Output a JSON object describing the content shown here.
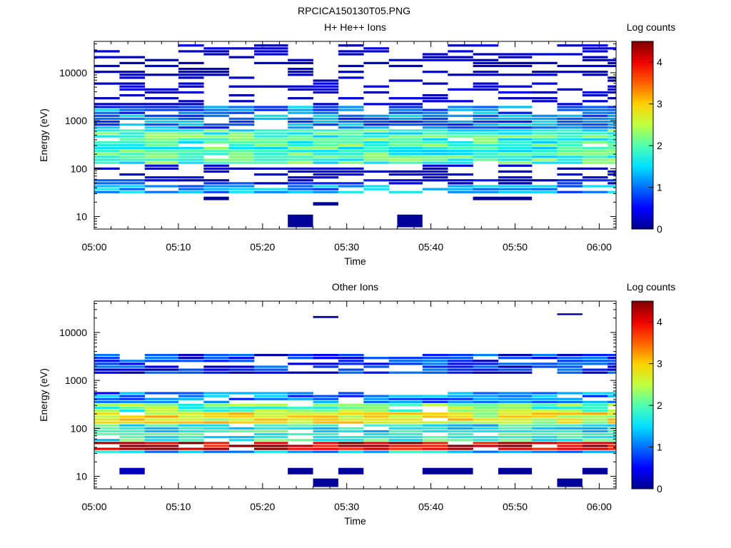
{
  "figure": {
    "title": "RPCICA150130T05.PNG"
  },
  "colormap": [
    "#00008f",
    "#0000ff",
    "#0070ff",
    "#00e0ff",
    "#50ffaf",
    "#c0ff40",
    "#ffd000",
    "#ff6000",
    "#ef0000",
    "#800000"
  ],
  "chart_data": [
    {
      "type": "heatmap",
      "title": "H+ He++ Ions",
      "xlabel": "Time",
      "ylabel": "Energy (eV)",
      "y_scale": "log",
      "xlim": [
        "05:00",
        "06:02"
      ],
      "ylim": [
        5.5,
        45000
      ],
      "x_ticks": [
        "05:00",
        "05:10",
        "05:20",
        "05:30",
        "05:40",
        "05:50",
        "06:00"
      ],
      "y_ticks": [
        {
          "value": 10,
          "label": "10"
        },
        {
          "value": 100,
          "label": "100"
        },
        {
          "value": 1000,
          "label": "1000"
        },
        {
          "value": 10000,
          "label": "10000"
        }
      ],
      "time_bins": [
        "05:00",
        "05:03",
        "05:06",
        "05:10",
        "05:13",
        "05:16",
        "05:19",
        "05:23",
        "05:26",
        "05:29",
        "05:32",
        "05:35",
        "05:39",
        "05:42",
        "05:45",
        "05:48",
        "05:52",
        "05:55",
        "05:58",
        "06:01"
      ],
      "colorbar": {
        "label": "Log counts",
        "ticks": [
          0,
          1,
          2,
          3,
          4
        ],
        "range": [
          0,
          4.5
        ]
      },
      "profile": [
        {
          "e_min": 30,
          "e_max": 48,
          "level": 1.2
        },
        {
          "e_min": 48,
          "e_max": 60,
          "level": 0.6
        },
        {
          "e_min": 60,
          "e_max": 130,
          "level": 0.25
        },
        {
          "e_min": 130,
          "e_max": 650,
          "level": 1.9
        },
        {
          "e_min": 650,
          "e_max": 2000,
          "level": 1.1
        },
        {
          "e_min": 2000,
          "e_max": 40000,
          "level": 0.12
        }
      ],
      "features": [
        {
          "t_start": "05:23",
          "t_end": "05:26",
          "e_min": 6,
          "e_max": 11,
          "level": 0.05
        },
        {
          "t_start": "05:36",
          "t_end": "05:39",
          "e_min": 6,
          "e_max": 11,
          "level": 0.05
        },
        {
          "t_start": "05:26",
          "t_end": "05:29",
          "e_min": 17,
          "e_max": 20,
          "level": 0.05
        },
        {
          "t_start": "05:13",
          "t_end": "05:16",
          "e_min": 22,
          "e_max": 26,
          "level": 0.05
        },
        {
          "t_start": "05:45",
          "t_end": "05:52",
          "e_min": 22,
          "e_max": 26,
          "level": 0.05
        }
      ]
    },
    {
      "type": "heatmap",
      "title": "Other Ions",
      "xlabel": "Time",
      "ylabel": "Energy (eV)",
      "y_scale": "log",
      "xlim": [
        "05:00",
        "06:02"
      ],
      "ylim": [
        5.5,
        45000
      ],
      "x_ticks": [
        "05:00",
        "05:10",
        "05:20",
        "05:30",
        "05:40",
        "05:50",
        "06:00"
      ],
      "y_ticks": [
        {
          "value": 10,
          "label": "10"
        },
        {
          "value": 100,
          "label": "100"
        },
        {
          "value": 1000,
          "label": "1000"
        },
        {
          "value": 10000,
          "label": "10000"
        }
      ],
      "time_bins": [
        "05:00",
        "05:03",
        "05:06",
        "05:10",
        "05:13",
        "05:16",
        "05:19",
        "05:23",
        "05:26",
        "05:29",
        "05:32",
        "05:35",
        "05:39",
        "05:42",
        "05:45",
        "05:48",
        "05:52",
        "05:55",
        "05:58",
        "06:01"
      ],
      "colorbar": {
        "label": "Log counts",
        "ticks": [
          0,
          1,
          2,
          3,
          4
        ],
        "range": [
          0,
          4.5
        ]
      },
      "profile": [
        {
          "e_min": 28,
          "e_max": 34,
          "level": 1.4
        },
        {
          "e_min": 34,
          "e_max": 50,
          "level": 4.2
        },
        {
          "e_min": 50,
          "e_max": 70,
          "level": 1.8
        },
        {
          "e_min": 70,
          "e_max": 120,
          "level": 1.7
        },
        {
          "e_min": 120,
          "e_max": 200,
          "level": 2.7
        },
        {
          "e_min": 200,
          "e_max": 330,
          "level": 2.1
        },
        {
          "e_min": 330,
          "e_max": 550,
          "level": 1.0
        },
        {
          "e_min": 1300,
          "e_max": 3500,
          "level": 0.6
        }
      ],
      "features": [
        {
          "t_start": "05:26",
          "t_end": "05:29",
          "e_min": 6,
          "e_max": 9,
          "level": 0.05
        },
        {
          "t_start": "05:55",
          "t_end": "05:58",
          "e_min": 6,
          "e_max": 9,
          "level": 0.05
        },
        {
          "t_start": "05:03",
          "t_end": "05:06",
          "e_min": 11,
          "e_max": 15,
          "level": 0.2
        },
        {
          "t_start": "05:23",
          "t_end": "05:26",
          "e_min": 11,
          "e_max": 15,
          "level": 0.05
        },
        {
          "t_start": "05:29",
          "t_end": "05:32",
          "e_min": 11,
          "e_max": 15,
          "level": 0.05
        },
        {
          "t_start": "05:39",
          "t_end": "05:45",
          "e_min": 11,
          "e_max": 15,
          "level": 0.05
        },
        {
          "t_start": "05:48",
          "t_end": "05:52",
          "e_min": 11,
          "e_max": 15,
          "level": 0.05
        },
        {
          "t_start": "05:58",
          "t_end": "06:01",
          "e_min": 11,
          "e_max": 15,
          "level": 0.05
        },
        {
          "t_start": "05:26",
          "t_end": "05:29",
          "e_min": 20000,
          "e_max": 22000,
          "level": 0.05
        },
        {
          "t_start": "05:55",
          "t_end": "05:58",
          "e_min": 23000,
          "e_max": 25000,
          "level": 0.05
        }
      ]
    }
  ]
}
